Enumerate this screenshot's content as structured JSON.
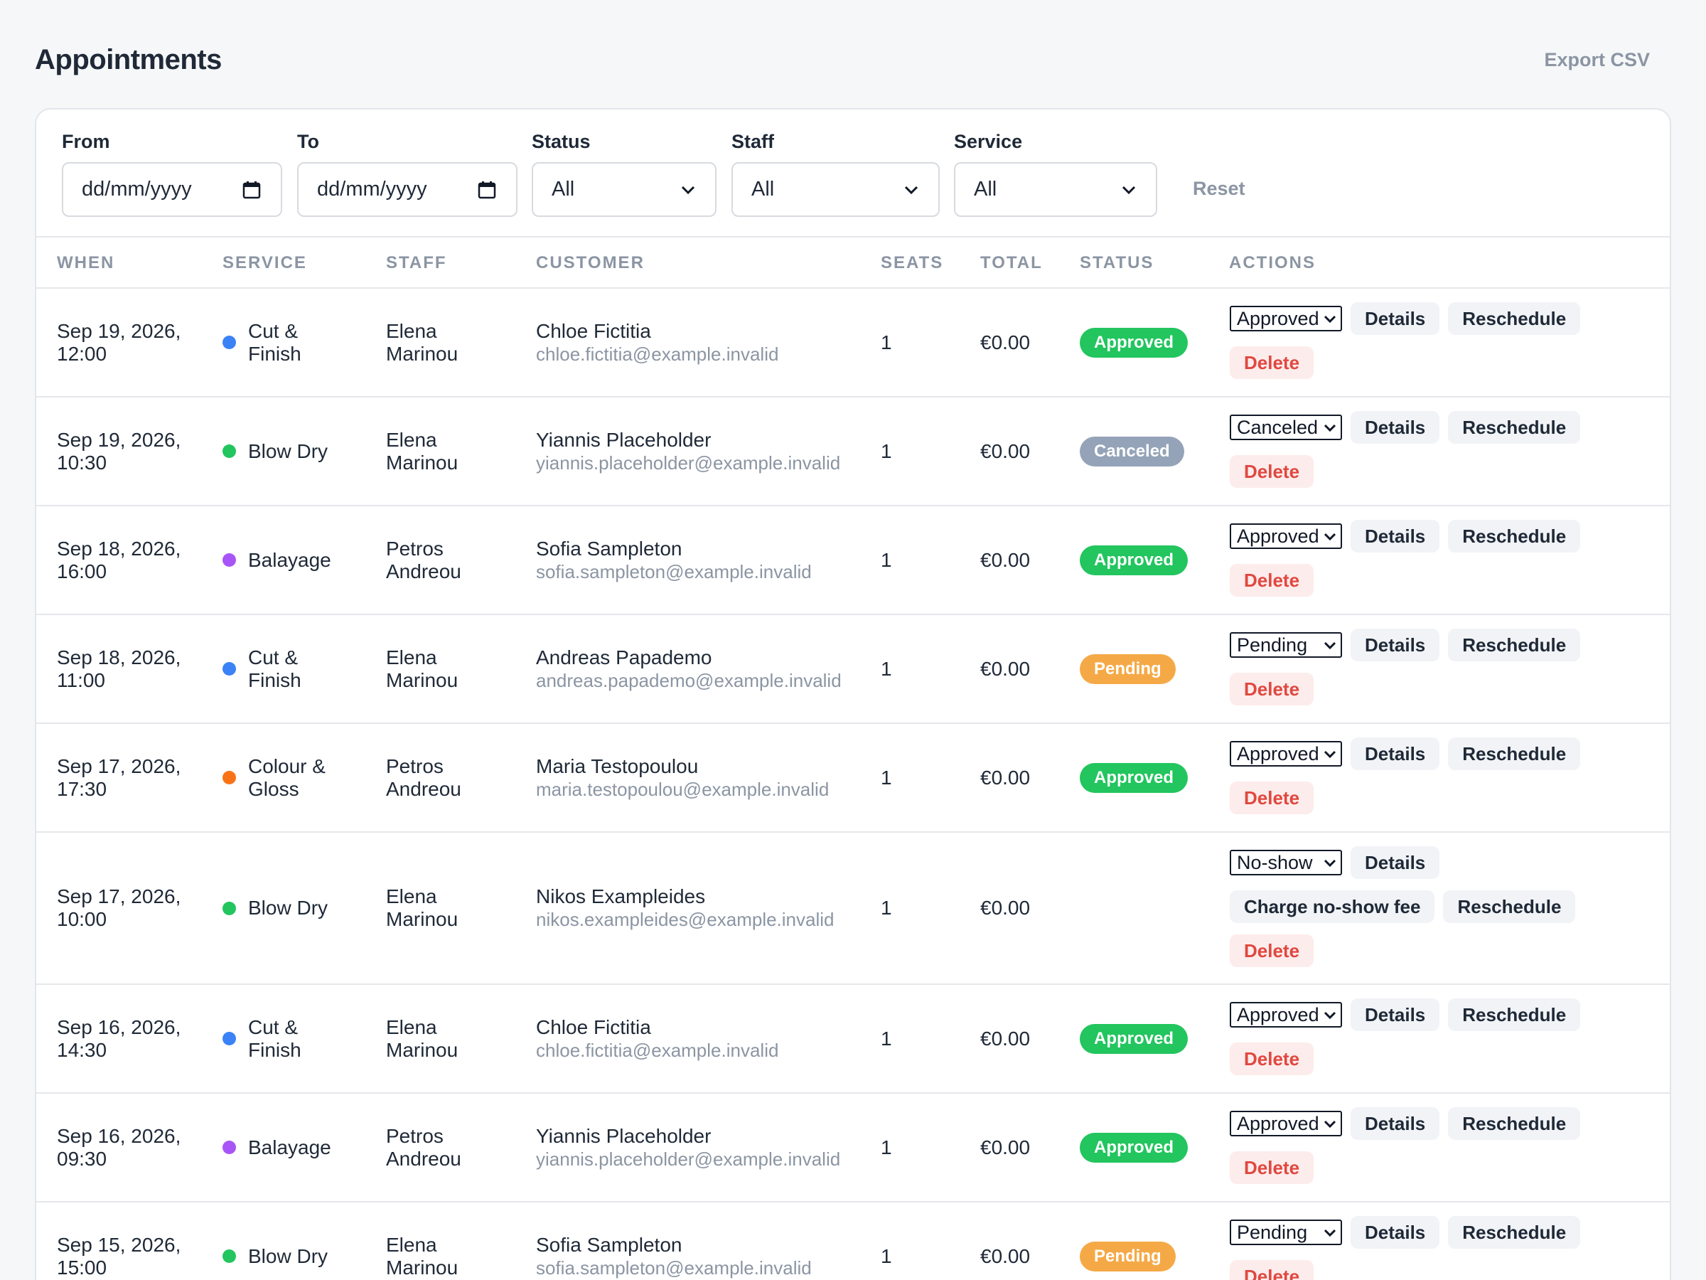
{
  "header": {
    "title": "Appointments",
    "export_label": "Export CSV"
  },
  "filters": {
    "from_label": "From",
    "from_value": "dd/mm/yyyy",
    "to_label": "To",
    "to_value": "dd/mm/yyyy",
    "status_label": "Status",
    "status_value": "All",
    "staff_label": "Staff",
    "staff_value": "All",
    "service_label": "Service",
    "service_value": "All",
    "reset_label": "Reset"
  },
  "columns": {
    "when": "WHEN",
    "service": "SERVICE",
    "staff": "STAFF",
    "customer": "CUSTOMER",
    "seats": "SEATS",
    "total": "TOTAL",
    "status": "STATUS",
    "actions": "ACTIONS"
  },
  "action_labels": {
    "details": "Details",
    "reschedule": "Reschedule",
    "delete": "Delete",
    "charge_noshow": "Charge no-show fee"
  },
  "status_colors": {
    "Approved": "#22c55e",
    "Canceled": "#94a3b8",
    "Pending": "#f5a946"
  },
  "service_colors": {
    "Cut & Finish": "#3b82f6",
    "Blow Dry": "#22c55e",
    "Balayage": "#a855f7",
    "Colour & Gloss": "#f97316"
  },
  "appointments": [
    {
      "when_date": "Sep 19, 2026,",
      "when_time": "12:00",
      "service": "Cut & Finish",
      "staff": "Elena Marinou",
      "customer": "Chloe Fictitia",
      "email": "chloe.fictitia@example.invalid",
      "seats": "1",
      "total": "€0.00",
      "status": "Approved",
      "status_select": "Approved"
    },
    {
      "when_date": "Sep 19, 2026,",
      "when_time": "10:30",
      "service": "Blow Dry",
      "staff": "Elena Marinou",
      "customer": "Yiannis Placeholder",
      "email": "yiannis.placeholder@example.invalid",
      "seats": "1",
      "total": "€0.00",
      "status": "Canceled",
      "status_select": "Canceled"
    },
    {
      "when_date": "Sep 18, 2026,",
      "when_time": "16:00",
      "service": "Balayage",
      "staff": "Petros Andreou",
      "customer": "Sofia Sampleton",
      "email": "sofia.sampleton@example.invalid",
      "seats": "1",
      "total": "€0.00",
      "status": "Approved",
      "status_select": "Approved"
    },
    {
      "when_date": "Sep 18, 2026,",
      "when_time": "11:00",
      "service": "Cut & Finish",
      "staff": "Elena Marinou",
      "customer": "Andreas Papademo",
      "email": "andreas.papademo@example.invalid",
      "seats": "1",
      "total": "€0.00",
      "status": "Pending",
      "status_select": "Pending"
    },
    {
      "when_date": "Sep 17, 2026,",
      "when_time": "17:30",
      "service": "Colour & Gloss",
      "staff": "Petros Andreou",
      "customer": "Maria Testopoulou",
      "email": "maria.testopoulou@example.invalid",
      "seats": "1",
      "total": "€0.00",
      "status": "Approved",
      "status_select": "Approved"
    },
    {
      "when_date": "Sep 17, 2026,",
      "when_time": "10:00",
      "service": "Blow Dry",
      "staff": "Elena Marinou",
      "customer": "Nikos Exampleides",
      "email": "nikos.exampleides@example.invalid",
      "seats": "1",
      "total": "€0.00",
      "status": "",
      "status_select": "No-show",
      "noshow": true
    },
    {
      "when_date": "Sep 16, 2026,",
      "when_time": "14:30",
      "service": "Cut & Finish",
      "staff": "Elena Marinou",
      "customer": "Chloe Fictitia",
      "email": "chloe.fictitia@example.invalid",
      "seats": "1",
      "total": "€0.00",
      "status": "Approved",
      "status_select": "Approved"
    },
    {
      "when_date": "Sep 16, 2026,",
      "when_time": "09:30",
      "service": "Balayage",
      "staff": "Petros Andreou",
      "customer": "Yiannis Placeholder",
      "email": "yiannis.placeholder@example.invalid",
      "seats": "1",
      "total": "€0.00",
      "status": "Approved",
      "status_select": "Approved"
    },
    {
      "when_date": "Sep 15, 2026,",
      "when_time": "15:00",
      "service": "Blow Dry",
      "staff": "Elena Marinou",
      "customer": "Sofia Sampleton",
      "email": "sofia.sampleton@example.invalid",
      "seats": "1",
      "total": "€0.00",
      "status": "Pending",
      "status_select": "Pending"
    }
  ]
}
